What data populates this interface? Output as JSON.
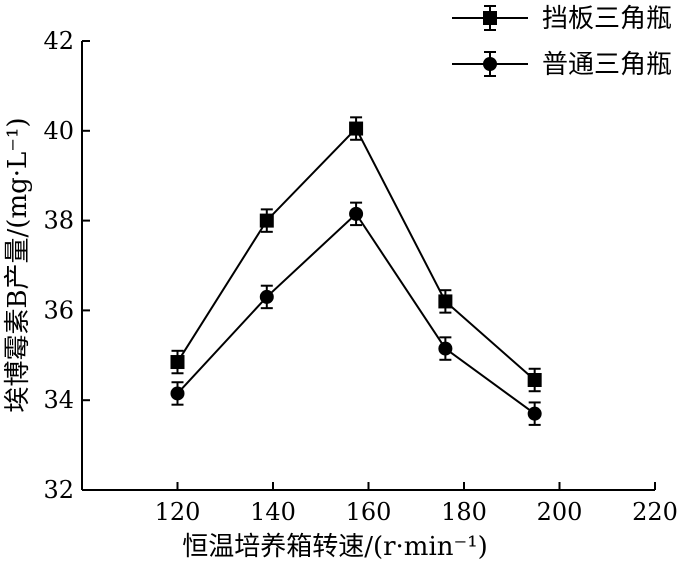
{
  "chart_data": {
    "type": "line",
    "title": "",
    "xlabel": "恒温培养箱转速/(r·min⁻¹)",
    "ylabel": "埃博霉素B产量/(mg·L⁻¹)",
    "xlim": [
      100,
      220
    ],
    "ylim": [
      32,
      42
    ],
    "xticks": [
      120,
      140,
      160,
      180,
      200,
      220
    ],
    "yticks": [
      32,
      34,
      36,
      38,
      40,
      42
    ],
    "legend_position": "top-right",
    "grid": false,
    "series": [
      {
        "name": "挡板三角瓶",
        "marker": "square",
        "x": [
          120,
          138.7,
          157.4,
          176.1,
          194.8
        ],
        "y": [
          34.85,
          38.0,
          40.05,
          36.2,
          34.45
        ],
        "error": [
          0.25,
          0.25,
          0.25,
          0.25,
          0.25
        ]
      },
      {
        "name": "普通三角瓶",
        "marker": "circle",
        "x": [
          120,
          138.7,
          157.4,
          176.1,
          194.8
        ],
        "y": [
          34.15,
          36.3,
          38.15,
          35.15,
          33.7
        ],
        "error": [
          0.25,
          0.25,
          0.25,
          0.25,
          0.25
        ]
      }
    ]
  }
}
